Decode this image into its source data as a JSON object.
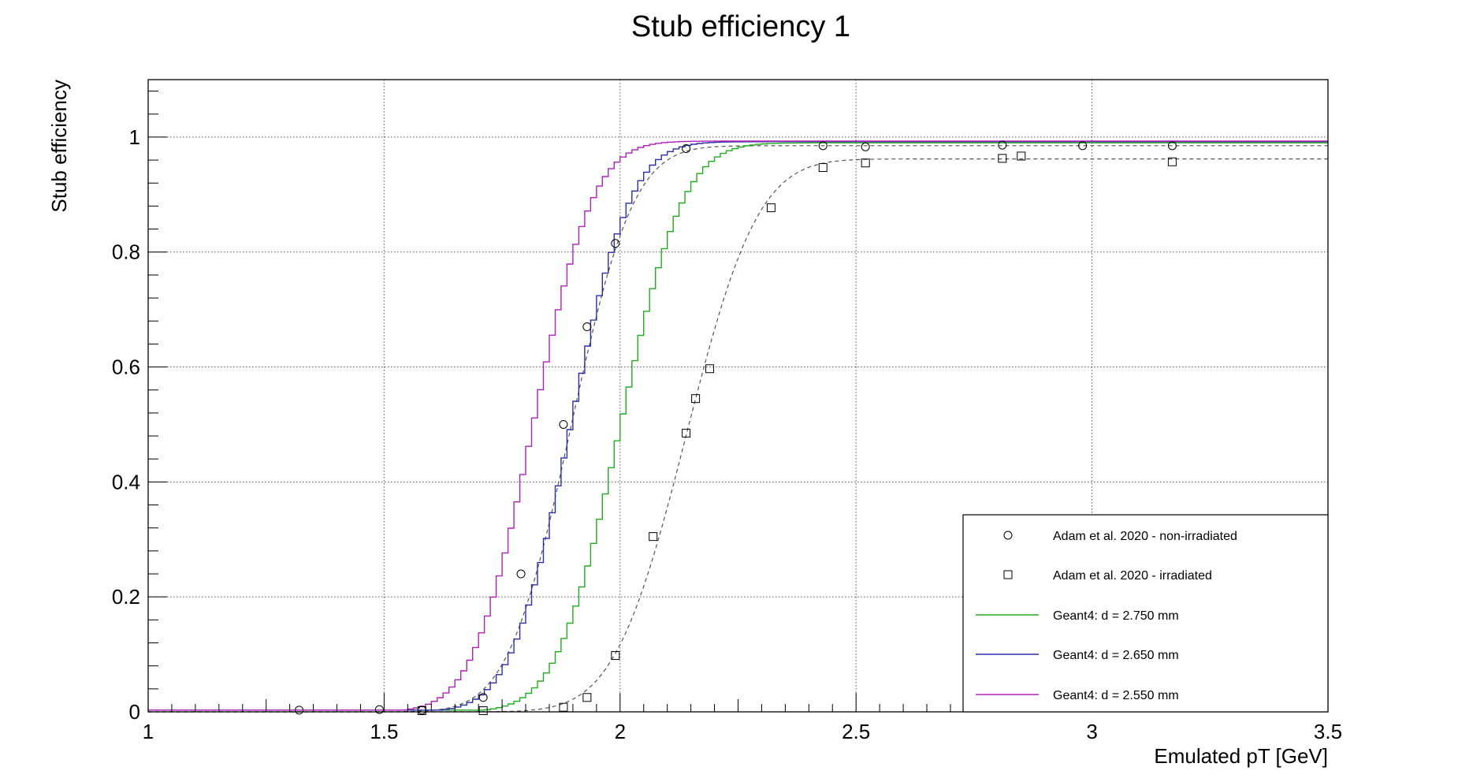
{
  "chart_data": {
    "type": "line",
    "title": "Stub efficiency 1",
    "xlabel": "Emulated pT [GeV]",
    "ylabel": "Stub efficiency",
    "xlim": [
      1,
      3.5
    ],
    "ylim": [
      0,
      1.1
    ],
    "x_ticks": [
      1,
      1.5,
      2,
      2.5,
      3,
      3.5
    ],
    "x_tick_labels": [
      "1",
      "1.5",
      "2",
      "2.5",
      "3",
      "3.5"
    ],
    "y_ticks": [
      0,
      0.2,
      0.4,
      0.6,
      0.8,
      1
    ],
    "y_tick_labels": [
      "0",
      "0.2",
      "0.4",
      "0.6",
      "0.8",
      "1"
    ],
    "grid": true,
    "legend_position": "bottom-right",
    "series": [
      {
        "name": "Adam et al. 2020 - non-irradiated",
        "kind": "markers",
        "marker": "circle",
        "color": "#000000",
        "x": [
          1.32,
          1.49,
          1.58,
          1.71,
          1.79,
          1.88,
          1.93,
          1.99,
          2.14,
          2.43,
          2.52,
          2.81,
          2.98,
          3.17
        ],
        "y": [
          0.003,
          0.004,
          0.003,
          0.025,
          0.24,
          0.5,
          0.67,
          0.815,
          0.98,
          0.985,
          0.983,
          0.986,
          0.985,
          0.985
        ]
      },
      {
        "name": "Adam et al. 2020 - irradiated",
        "kind": "markers",
        "marker": "square",
        "color": "#000000",
        "x": [
          1.58,
          1.71,
          1.88,
          1.93,
          1.99,
          2.07,
          2.14,
          2.16,
          2.19,
          2.32,
          2.43,
          2.52,
          2.81,
          2.85,
          3.17
        ],
        "y": [
          0.002,
          0.002,
          0.008,
          0.025,
          0.098,
          0.305,
          0.485,
          0.545,
          0.597,
          0.877,
          0.947,
          0.955,
          0.963,
          0.967,
          0.957
        ]
      },
      {
        "name": "fit non-irradiated",
        "kind": "fit",
        "color": "#555555",
        "plateau": 0.985,
        "mean": 1.895,
        "width": 0.105
      },
      {
        "name": "fit irradiated",
        "kind": "fit",
        "color": "#555555",
        "plateau": 0.962,
        "mean": 2.14,
        "width": 0.12
      },
      {
        "name": "Geant4: d = 2.750 mm",
        "kind": "step",
        "color": "#22aa22",
        "plateau": 0.99,
        "mean": 2.0,
        "width": 0.105
      },
      {
        "name": "Geant4: d = 2.650 mm",
        "kind": "step",
        "color": "#2a2fa8",
        "plateau": 0.992,
        "mean": 1.895,
        "width": 0.1
      },
      {
        "name": "Geant4: d = 2.550 mm",
        "kind": "step",
        "color": "#b020b8",
        "plateau": 0.993,
        "mean": 1.815,
        "width": 0.1
      }
    ],
    "legend": [
      {
        "label": "Adam et al. 2020 - non-irradiated",
        "symbol": "circle",
        "color": "#000000"
      },
      {
        "label": "Adam et al. 2020 - irradiated",
        "symbol": "square",
        "color": "#000000"
      },
      {
        "label": "Geant4: d = 2.750 mm",
        "symbol": "line",
        "color": "#22aa22"
      },
      {
        "label": "Geant4: d = 2.650 mm",
        "symbol": "line",
        "color": "#2a2fa8"
      },
      {
        "label": "Geant4: d = 2.550 mm",
        "symbol": "line",
        "color": "#b020b8"
      }
    ]
  }
}
